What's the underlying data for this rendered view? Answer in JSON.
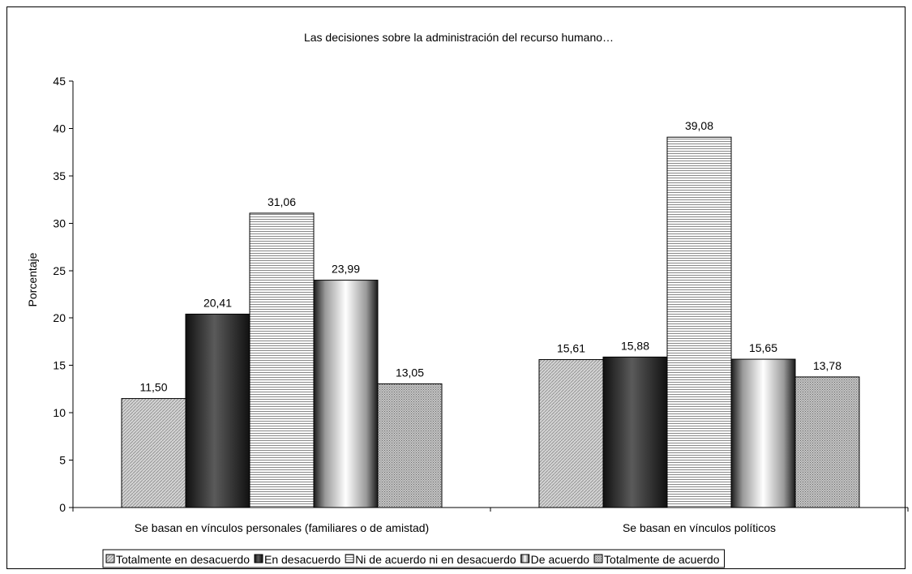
{
  "chart_data": {
    "type": "bar",
    "title": "Las decisiones sobre la administración del recurso humano…",
    "ylabel": "Porcentaje",
    "xlabel": "",
    "ylim": [
      0,
      45
    ],
    "yticks": [
      0,
      5,
      10,
      15,
      20,
      25,
      30,
      35,
      40,
      45
    ],
    "categories": [
      "Se basan en vínculos personales (familiares o de amistad)",
      "Se basan en vínculos políticos"
    ],
    "series": [
      {
        "name": "Totalmente en desacuerdo",
        "values": [
          11.5,
          15.61
        ],
        "labels": [
          "11,50",
          "15,61"
        ],
        "fill": "#c8c8c8"
      },
      {
        "name": "En desacuerdo",
        "values": [
          20.41,
          15.88
        ],
        "labels": [
          "20,41",
          "15,88"
        ],
        "fill": "#303030"
      },
      {
        "name": "Ni de acuerdo ni en desacuerdo",
        "values": [
          31.06,
          39.08
        ],
        "labels": [
          "31,06",
          "39,08"
        ],
        "fill": "#ececec"
      },
      {
        "name": "De acuerdo",
        "values": [
          23.99,
          15.65
        ],
        "labels": [
          "23,99",
          "15,65"
        ],
        "fill": "#ffffff"
      },
      {
        "name": "Totalmente de acuerdo",
        "values": [
          13.05,
          13.78
        ],
        "labels": [
          "13,05",
          "13,78"
        ],
        "fill": "#a8a8a8"
      }
    ],
    "legend_position": "bottom",
    "grid": false
  }
}
